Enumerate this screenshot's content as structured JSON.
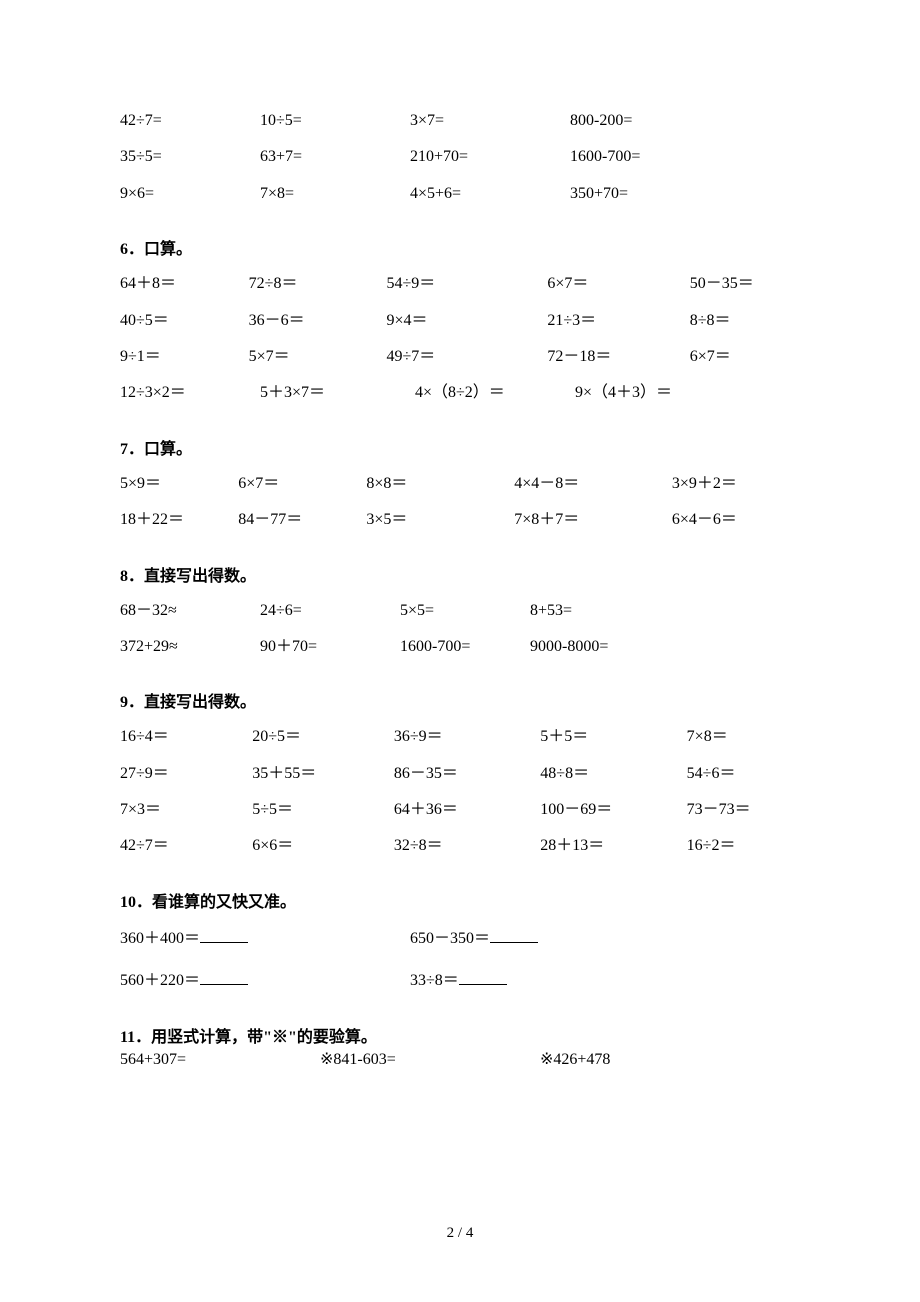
{
  "sec5": [
    [
      "42÷7=",
      "10÷5=",
      "3×7=",
      "800-200="
    ],
    [
      "35÷5=",
      "63+7=",
      "210+70=",
      "1600-700="
    ],
    [
      "9×6=",
      "7×8=",
      "4×5+6=",
      "350+70="
    ]
  ],
  "sec5_widths": [
    140,
    150,
    160,
    200
  ],
  "sec6_title": "6．口算。",
  "sec6": [
    [
      "64＋8＝",
      "72÷8＝",
      "54÷9＝",
      "6×7＝",
      "50－35＝"
    ],
    [
      "40÷5＝",
      "36－6＝",
      "9×4＝",
      "21÷3＝",
      "8÷8＝"
    ],
    [
      "9÷1＝",
      "5×7＝",
      "49÷7＝",
      "72－18＝",
      "6×7＝"
    ]
  ],
  "sec6_widths": [
    140,
    150,
    175,
    155,
    120
  ],
  "sec6b": [
    "12÷3×2＝",
    "5＋3×7＝",
    "4×（8÷2）＝",
    "9×（4＋3）＝"
  ],
  "sec6b_widths": [
    140,
    155,
    160,
    200
  ],
  "sec7_title": "7．口算。",
  "sec7": [
    [
      "5×9＝",
      "6×7＝",
      "8×8＝",
      "4×4－8＝",
      "3×9＋2＝"
    ],
    [
      "18＋22＝",
      "84－77＝",
      "3×5＝",
      "7×8＋7＝",
      "6×4－6＝"
    ]
  ],
  "sec7_widths": [
    120,
    130,
    150,
    160,
    130
  ],
  "sec8_title": "8．直接写出得数。",
  "sec8": [
    [
      "68－32≈",
      "24÷6=",
      "5×5=",
      "8+53="
    ],
    [
      "372+29≈",
      "90＋70=",
      "1600-700=",
      "9000-8000="
    ]
  ],
  "sec8_widths": [
    140,
    140,
    130,
    200
  ],
  "sec9_title": "9．直接写出得数。",
  "sec9": [
    [
      "16÷4＝",
      "20÷5＝",
      "36÷9＝",
      "5＋5＝",
      "7×8＝"
    ],
    [
      "27÷9＝",
      "35＋55＝",
      "86－35＝",
      "48÷8＝",
      "54÷6＝"
    ],
    [
      "7×3＝",
      "5÷5＝",
      "64＋36＝",
      "100－69＝",
      "73－73＝"
    ],
    [
      "42÷7＝",
      "6×6＝",
      "32÷8＝",
      "28＋13＝",
      "16÷2＝"
    ]
  ],
  "sec9_widths": [
    140,
    150,
    155,
    155,
    120
  ],
  "sec10_title": "10．看谁算的又快又准。",
  "sec10_left": [
    "360＋400＝",
    "560＋220＝"
  ],
  "sec10_right": [
    "650－350＝",
    "33÷8＝"
  ],
  "sec10_col1_width": 290,
  "sec11_title": "11．用竖式计算，带\"※\"的要验算。",
  "sec11": [
    "564+307=",
    "※841-603=",
    "※426+478"
  ],
  "sec11_widths": [
    200,
    220,
    200
  ],
  "page_number": "2 / 4"
}
